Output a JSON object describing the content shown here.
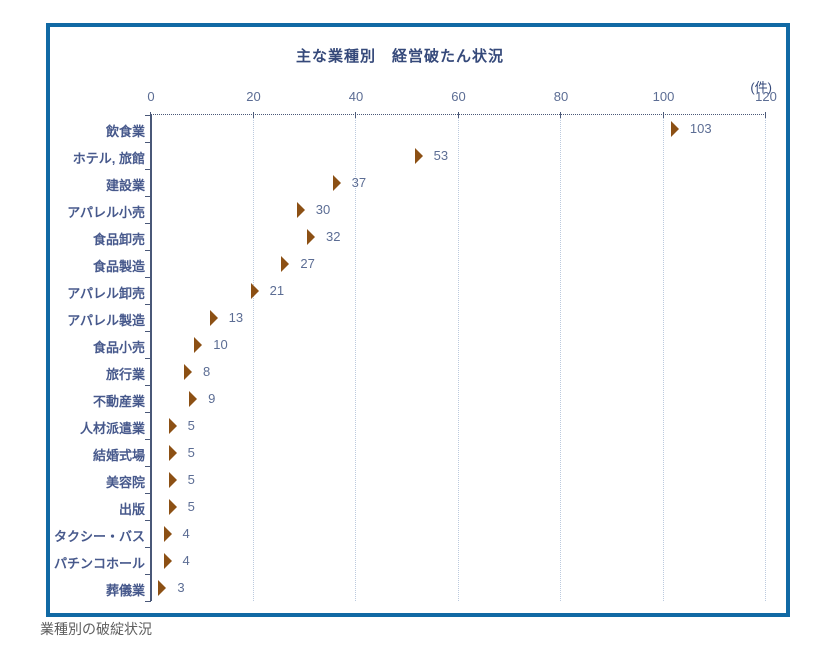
{
  "page": {
    "caption": "業種別の破綻状況"
  },
  "colors": {
    "panel_border": "#1169a4",
    "title_text": "#35497a",
    "category_text": "#47598c",
    "tick_text": "#5c6d94",
    "value_text": "#5c6d94",
    "gridline": "#bccade",
    "axis": "#4a5878",
    "bar_main": "#e9973f",
    "bar_cap": "#8c5014",
    "caption_text": "#5e5e5e"
  },
  "chart_data": {
    "type": "bar",
    "orientation": "horizontal",
    "title": "主な業種別　経営破たん状況",
    "unit_label": "(件)",
    "categories": [
      "飲食業",
      "ホテル, 旅館",
      "建設業",
      "アパレル小売",
      "食品卸売",
      "食品製造",
      "アパレル卸売",
      "アパレル製造",
      "食品小売",
      "旅行業",
      "不動産業",
      "人材派遣業",
      "結婚式場",
      "美容院",
      "出版",
      "タクシー・バス",
      "パチンコホール",
      "葬儀業"
    ],
    "values": [
      103,
      53,
      37,
      30,
      32,
      27,
      21,
      13,
      10,
      8,
      9,
      5,
      5,
      5,
      5,
      4,
      4,
      3
    ],
    "xlabel": "",
    "ylabel": "",
    "xlim": [
      0,
      120
    ],
    "xticks": [
      0,
      20,
      40,
      60,
      80,
      100,
      120
    ],
    "grid": "vertical-dotted",
    "legend": "none"
  }
}
